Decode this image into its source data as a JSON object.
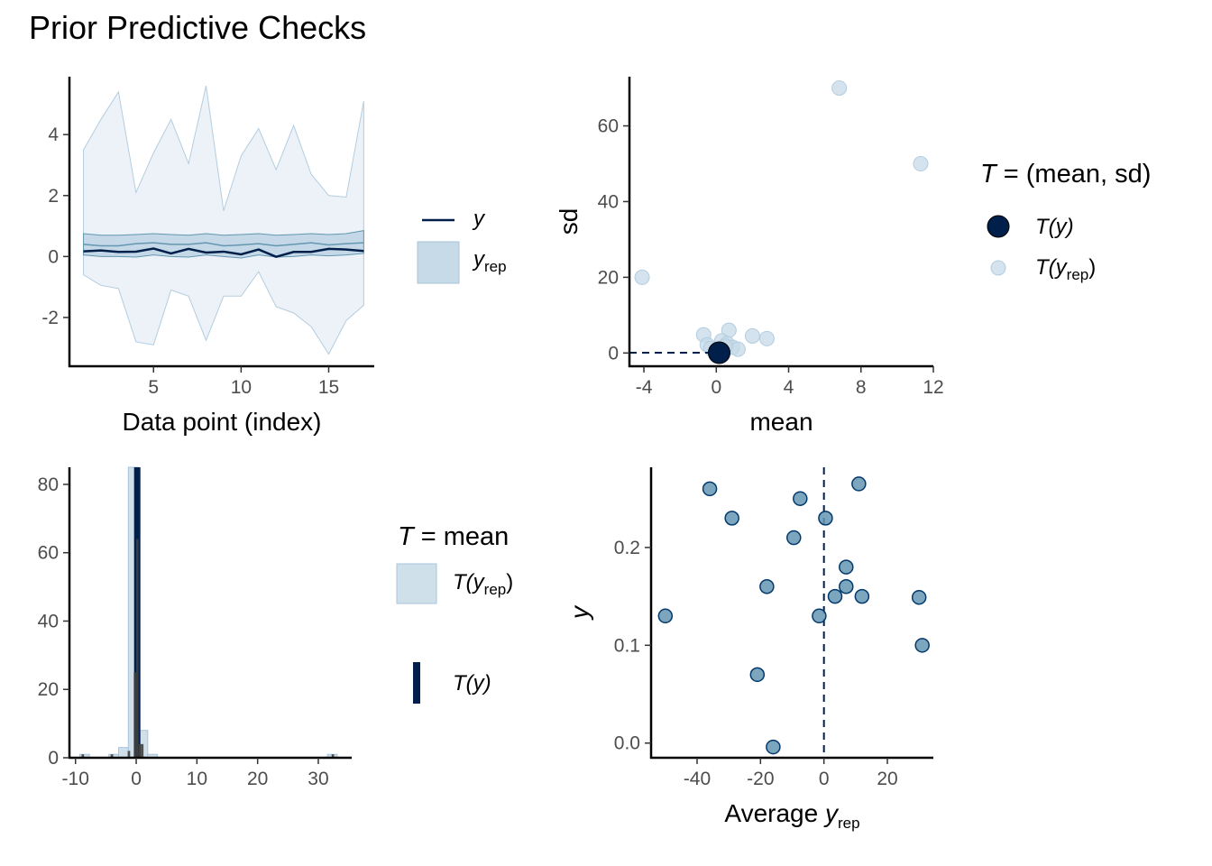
{
  "title": "Prior Predictive Checks",
  "colors": {
    "dark": "#011f4b",
    "ribbon_light": "#dce7f0",
    "ribbon_mid": "#b3cde0",
    "yrep_points": "#c6d9e7",
    "scatter_points": "#6497b1",
    "scatter_stroke": "#03396c",
    "hist_fill": "#c7dae8",
    "hist_stroke": "#a9c4db",
    "hist_dark": "#404040",
    "axis_text": "#4d4d4d"
  },
  "chart_data": [
    {
      "type": "area",
      "panel": "intervals",
      "xlabel": "Data point (index)",
      "ylabel": "",
      "xlim": [
        0.2,
        17.6
      ],
      "ylim": [
        -3.6,
        5.9
      ],
      "xticks": [
        5,
        10,
        15
      ],
      "yticks": [
        -2,
        0,
        2,
        4
      ],
      "x": [
        1,
        2,
        3,
        4,
        5,
        6,
        7,
        8,
        9,
        10,
        11,
        12,
        13,
        14,
        15,
        16,
        17
      ],
      "outer_upper": [
        3.5,
        4.5,
        5.4,
        2.1,
        3.4,
        4.5,
        3.05,
        5.6,
        1.5,
        3.3,
        4.2,
        2.85,
        4.3,
        2.7,
        2.0,
        1.95,
        5.1
      ],
      "outer_lower": [
        -0.6,
        -0.95,
        -1.05,
        -2.8,
        -2.9,
        -1.1,
        -1.3,
        -2.75,
        -1.3,
        -1.3,
        -0.5,
        -1.65,
        -1.85,
        -2.3,
        -3.2,
        -2.1,
        -1.6
      ],
      "inner_upper": [
        0.75,
        0.7,
        0.7,
        0.72,
        0.75,
        0.72,
        0.7,
        0.75,
        0.7,
        0.72,
        0.75,
        0.7,
        0.72,
        0.75,
        0.72,
        0.75,
        0.85
      ],
      "inner_lower": [
        0.05,
        0.0,
        0.0,
        -0.02,
        0.05,
        0.0,
        -0.02,
        0.05,
        0.0,
        -0.05,
        0.05,
        -0.02,
        0.0,
        0.05,
        0.02,
        0.05,
        0.1
      ],
      "median": [
        0.4,
        0.35,
        0.35,
        0.42,
        0.45,
        0.4,
        0.4,
        0.45,
        0.35,
        0.38,
        0.42,
        0.35,
        0.4,
        0.45,
        0.38,
        0.42,
        0.45
      ],
      "y": [
        0.17,
        0.2,
        0.15,
        0.16,
        0.26,
        0.1,
        0.25,
        0.13,
        0.16,
        0.07,
        0.23,
        -0.01,
        0.15,
        0.15,
        0.25,
        0.23,
        0.18
      ],
      "legend": {
        "y_label": "y",
        "yrep_label": "y",
        "yrep_sub": "rep"
      }
    },
    {
      "type": "scatter",
      "panel": "stat_2d",
      "xlabel": "mean",
      "ylabel": "sd",
      "xlim": [
        -4.8,
        12.0
      ],
      "ylim": [
        -3.5,
        73
      ],
      "xticks": [
        -4,
        0,
        4,
        8,
        12
      ],
      "yticks": [
        0,
        20,
        40,
        60
      ],
      "yrep_points": [
        {
          "x": 6.8,
          "y": 70
        },
        {
          "x": 11.3,
          "y": 50
        },
        {
          "x": -4.1,
          "y": 20
        },
        {
          "x": 0.7,
          "y": 6
        },
        {
          "x": -0.7,
          "y": 4.8
        },
        {
          "x": 2.0,
          "y": 4.5
        },
        {
          "x": 2.8,
          "y": 3.8
        },
        {
          "x": 0.3,
          "y": 3.2
        },
        {
          "x": 0.6,
          "y": 2.5
        },
        {
          "x": -0.5,
          "y": 2.2
        },
        {
          "x": 0.9,
          "y": 1.5
        },
        {
          "x": 1.2,
          "y": 1.0
        },
        {
          "x": -0.3,
          "y": 1.2
        },
        {
          "x": 0.1,
          "y": 0.8
        },
        {
          "x": 0.5,
          "y": 1.8
        }
      ],
      "observed": {
        "x": 0.16,
        "y": 0.07
      },
      "legend_title_T": "T",
      "legend_title_rest": "= (mean, sd)",
      "legend": {
        "obs_label": "T(y)",
        "rep_pre": "T(y",
        "rep_sub": "rep",
        "rep_post": ")"
      }
    },
    {
      "type": "bar",
      "panel": "stat_hist",
      "xlabel": "",
      "ylabel": "",
      "xlim": [
        -11.0,
        35.5
      ],
      "ylim": [
        0,
        85
      ],
      "xticks": [
        -10,
        0,
        10,
        20,
        30
      ],
      "yticks": [
        0,
        20,
        40,
        60,
        80
      ],
      "bins_light": [
        {
          "x0": -9.3,
          "x1": -7.7,
          "count": 1
        },
        {
          "x0": -4.5,
          "x1": -2.9,
          "count": 1
        },
        {
          "x0": -2.9,
          "x1": -1.3,
          "count": 3
        },
        {
          "x0": -1.3,
          "x1": 0.3,
          "count": 85
        },
        {
          "x0": 0.3,
          "x1": 1.9,
          "count": 8
        },
        {
          "x0": 1.9,
          "x1": 3.5,
          "count": 1
        },
        {
          "x0": 31.5,
          "x1": 33.1,
          "count": 1
        }
      ],
      "bins_dark": [
        {
          "x0": -9.0,
          "x1": -8.6,
          "count": 1
        },
        {
          "x0": -4.2,
          "x1": -3.8,
          "count": 1
        },
        {
          "x0": -1.4,
          "x1": -1.0,
          "count": 2
        },
        {
          "x0": -0.4,
          "x1": 0.0,
          "count": 25
        },
        {
          "x0": 0.0,
          "x1": 0.4,
          "count": 64
        },
        {
          "x0": 0.4,
          "x1": 0.8,
          "count": 4
        },
        {
          "x0": 0.8,
          "x1": 1.2,
          "count": 4
        },
        {
          "x0": 32.2,
          "x1": 32.6,
          "count": 1
        }
      ],
      "observed_mean": 0.17,
      "legend_title_T": "T",
      "legend_title_rest": "= mean",
      "legend": {
        "rep_pre": "T(y",
        "rep_sub": "rep",
        "rep_post": ")",
        "obs_label": "T(y)"
      }
    },
    {
      "type": "scatter",
      "panel": "avg_vs_y",
      "xlabel_main": "Average ",
      "xlabel_y": "y",
      "xlabel_sub": "rep",
      "ylabel": "y",
      "xlim": [
        -54.5,
        34.5
      ],
      "ylim": [
        -0.015,
        0.282
      ],
      "xticks": [
        -40,
        -20,
        0,
        20
      ],
      "yticks": [
        0.0,
        0.1,
        0.2
      ],
      "ytick_labels": [
        "0.0",
        "0.1",
        "0.2"
      ],
      "vline_x": 0,
      "points": [
        {
          "x": -36,
          "y": 0.26
        },
        {
          "x": 11,
          "y": 0.265
        },
        {
          "x": -7.5,
          "y": 0.25
        },
        {
          "x": -29,
          "y": 0.23
        },
        {
          "x": 0.5,
          "y": 0.23
        },
        {
          "x": -9.5,
          "y": 0.21
        },
        {
          "x": 7,
          "y": 0.18
        },
        {
          "x": -18,
          "y": 0.16
        },
        {
          "x": 7,
          "y": 0.16
        },
        {
          "x": 3.5,
          "y": 0.15
        },
        {
          "x": 12,
          "y": 0.15
        },
        {
          "x": 30,
          "y": 0.149
        },
        {
          "x": -50,
          "y": 0.13
        },
        {
          "x": -1.5,
          "y": 0.13
        },
        {
          "x": 31,
          "y": 0.1
        },
        {
          "x": -21,
          "y": 0.07
        },
        {
          "x": -16,
          "y": -0.004
        }
      ]
    }
  ]
}
